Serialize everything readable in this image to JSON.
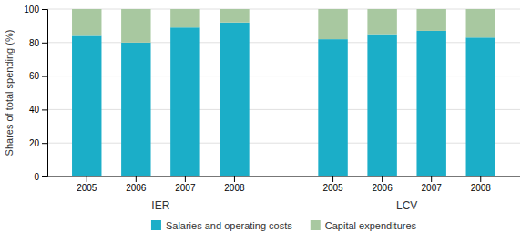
{
  "chart_data": {
    "type": "bar",
    "stacked": true,
    "ylabel": "Shares of total spending (%)",
    "groups": [
      "IER",
      "LCV"
    ],
    "categories": [
      "2005",
      "2006",
      "2007",
      "2008",
      "2005",
      "2006",
      "2007",
      "2008"
    ],
    "series": [
      {
        "name": "Salaries and operating costs",
        "color": "#1baec8",
        "values": [
          84,
          80,
          89,
          92,
          82,
          85,
          87,
          83
        ]
      },
      {
        "name": "Capital expenditures",
        "color": "#a8c8a0",
        "values": [
          16,
          20,
          11,
          8,
          18,
          15,
          13,
          17
        ]
      }
    ],
    "ylim": [
      0,
      100
    ],
    "yticks": [
      0,
      20,
      40,
      60,
      80,
      100
    ],
    "grid": true,
    "legend": "bottom"
  }
}
